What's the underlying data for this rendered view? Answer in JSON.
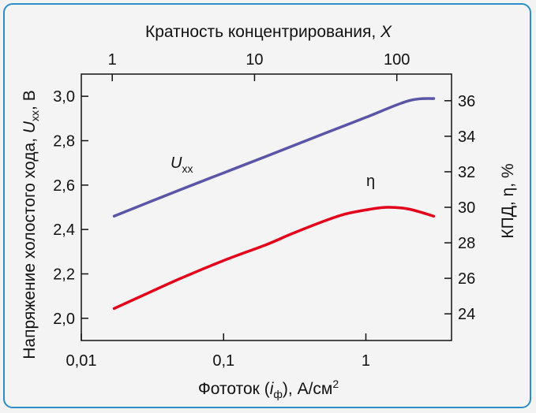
{
  "chart_data": {
    "type": "line",
    "title": "",
    "x_bottom": {
      "label_prefix": "Фототок (",
      "label_var": "i",
      "label_sub": "ф",
      "label_suffix": "), А/см",
      "label_sup": "2",
      "scale": "log",
      "range": [
        0.01,
        4
      ],
      "ticks": [
        0.01,
        0.1,
        1
      ],
      "tick_labels": [
        "0,01",
        "0,1",
        "1"
      ]
    },
    "x_top": {
      "label_text": "Кратность концентрирования, ",
      "label_var": "X",
      "scale": "log",
      "ticks": [
        1,
        10,
        100
      ],
      "tick_labels": [
        "1",
        "10",
        "100"
      ]
    },
    "y_left": {
      "label_text": "Напряжение холостого хода, ",
      "label_var": "U",
      "label_sub": "хх",
      "label_suffix": ", В",
      "range": [
        1.9,
        3.1
      ],
      "ticks": [
        2.0,
        2.2,
        2.4,
        2.6,
        2.8,
        3.0
      ],
      "tick_labels": [
        "2,0",
        "2,2",
        "2,4",
        "2,6",
        "2,8",
        "3,0"
      ]
    },
    "y_right": {
      "label_text": "КПД, η, %",
      "range": [
        22.5,
        37.5
      ],
      "ticks": [
        24,
        26,
        28,
        30,
        32,
        34,
        36
      ],
      "tick_labels": [
        "24",
        "26",
        "28",
        "30",
        "32",
        "34",
        "36"
      ]
    },
    "series": [
      {
        "name": "U",
        "name_sub": "хх",
        "axis": "left",
        "color": "#5b55a8",
        "x": [
          0.017,
          0.05,
          0.1,
          0.2,
          0.5,
          1.0,
          2.0,
          3.0
        ],
        "y": [
          2.46,
          2.58,
          2.655,
          2.73,
          2.83,
          2.905,
          2.98,
          2.99
        ]
      },
      {
        "name": "η",
        "axis": "right",
        "color": "#e2001a",
        "x": [
          0.017,
          0.03,
          0.05,
          0.1,
          0.2,
          0.3,
          0.5,
          0.7,
          1.0,
          1.4,
          2.0,
          3.0
        ],
        "y": [
          24.3,
          25.2,
          26.0,
          27.0,
          27.9,
          28.5,
          29.2,
          29.6,
          29.85,
          30.0,
          29.9,
          29.5
        ]
      }
    ],
    "grid": false
  }
}
